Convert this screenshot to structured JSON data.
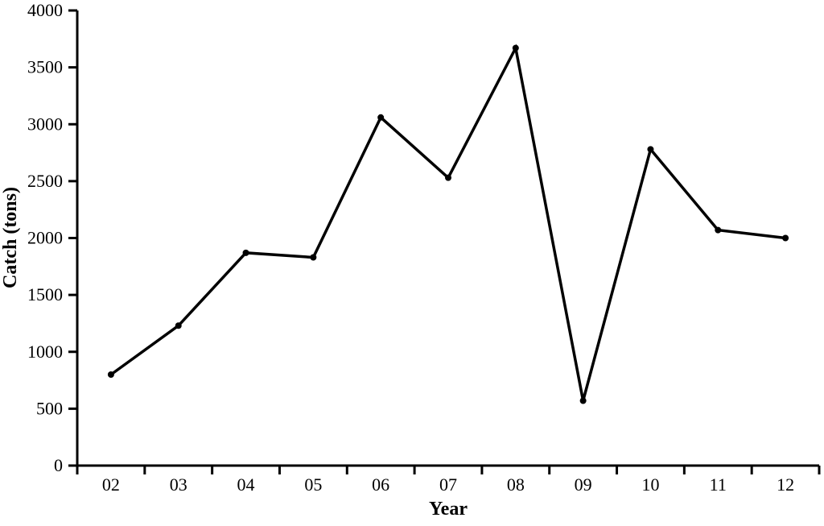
{
  "chart_data": {
    "type": "line",
    "title": "",
    "xlabel": "Year",
    "ylabel": "Catch (tons)",
    "categories": [
      "02",
      "03",
      "04",
      "05",
      "06",
      "07",
      "08",
      "09",
      "10",
      "11",
      "12"
    ],
    "series": [
      {
        "name": "Catch (tons)",
        "values": [
          800,
          1230,
          1870,
          1830,
          3060,
          2530,
          3670,
          570,
          2780,
          2070,
          2000
        ]
      }
    ],
    "ylim": [
      0,
      4000
    ],
    "ytick_interval": 500,
    "ytick_labels": [
      "0",
      "500",
      "1000",
      "1500",
      "2000",
      "2500",
      "3000",
      "3500",
      "4000"
    ],
    "grid": false,
    "legend_position": "none",
    "line_color": "#000000",
    "marker": "filled-circle",
    "background_color": "#ffffff"
  }
}
